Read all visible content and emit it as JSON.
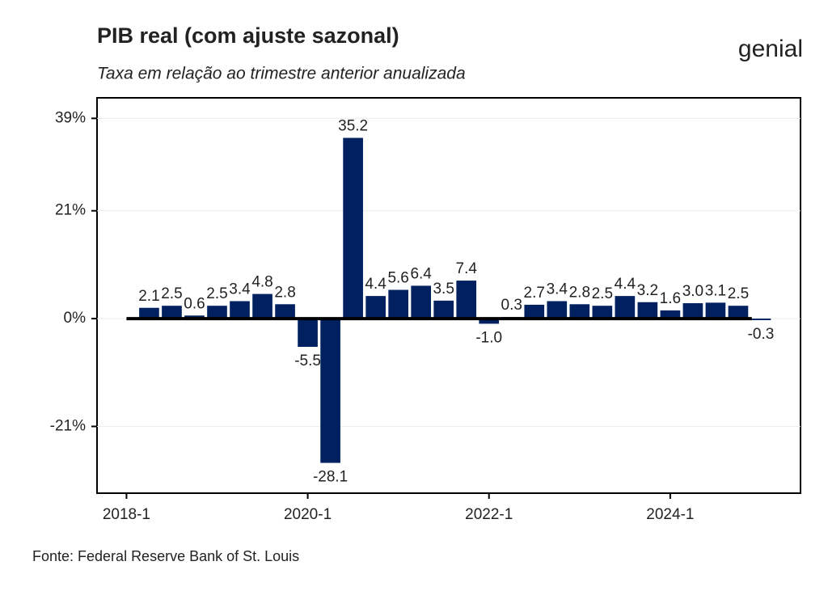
{
  "chart_data": {
    "type": "bar",
    "title": "PIB real (com ajuste sazonal)",
    "subtitle": "Taxa em relação ao trimestre anterior anualizada",
    "source": "Fonte: Federal Reserve Bank of St. Louis",
    "logo": "genial",
    "x": [
      1,
      2,
      3,
      4,
      5,
      6,
      7,
      8,
      9,
      10,
      11,
      12,
      13,
      14,
      15,
      16,
      17,
      18,
      19,
      20,
      21,
      22,
      23,
      24,
      25,
      26,
      27,
      28
    ],
    "values": [
      2.1,
      2.5,
      0.6,
      2.5,
      3.4,
      4.8,
      2.8,
      -5.5,
      -28.1,
      35.2,
      4.4,
      5.6,
      6.4,
      3.5,
      7.4,
      -1.0,
      0.3,
      2.7,
      3.4,
      2.8,
      2.5,
      4.4,
      3.2,
      1.6,
      3.0,
      3.1,
      2.5,
      -0.3
    ],
    "value_labels": [
      "2.1",
      "2.5",
      "0.6",
      "2.5",
      "3.4",
      "4.8",
      "2.8",
      "-5.5",
      "-28.1",
      "35.2",
      "4.4",
      "5.6",
      "6.4",
      "3.5",
      "7.4",
      "-1.0",
      "0.3",
      "2.7",
      "3.4",
      "2.8",
      "2.5",
      "4.4",
      "3.2",
      "1.6",
      "3.0",
      "3.1",
      "2.5",
      "-0.3"
    ],
    "color": "#002060",
    "xlim": [
      -1.3,
      29.75
    ],
    "xticks": [
      {
        "value": 0,
        "label": "2018-1"
      },
      {
        "value": 8,
        "label": "2020-1"
      },
      {
        "value": 16,
        "label": "2022-1"
      },
      {
        "value": 24,
        "label": "2024-1"
      }
    ],
    "ylim": [
      -34,
      43
    ],
    "yticks": [
      {
        "value": -21,
        "label": "-21%"
      },
      {
        "value": 0,
        "label": "0%"
      },
      {
        "value": 21,
        "label": "21%"
      },
      {
        "value": 39,
        "label": "39%"
      }
    ],
    "grid": true
  }
}
